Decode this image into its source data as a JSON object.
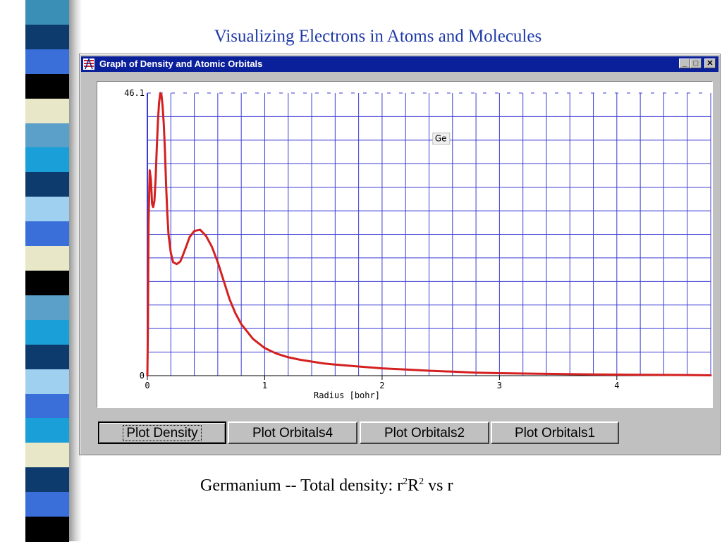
{
  "slide": {
    "title": "Visualizing Electrons in Atoms and Molecules",
    "caption_prefix": "Germanium -- Total density:  r",
    "caption_exp1": "2",
    "caption_mid": "R",
    "caption_exp2": "2",
    "caption_suffix": "  vs  r"
  },
  "window": {
    "title": "Graph of Density and Atomic Orbitals",
    "min_glyph": "_",
    "max_glyph": "□",
    "close_glyph": "✕"
  },
  "buttons": {
    "plot_density": "Plot Density",
    "plot_orbitals4": "Plot Orbitals4",
    "plot_orbitals2": "Plot Orbitals2",
    "plot_orbitals1": "Plot Orbitals1"
  },
  "colors": {
    "title_blue": "#1f3aa8",
    "titlebar": "#0a1f9a",
    "grid": "#3b3bd6",
    "curve": "#d42020",
    "strip": [
      "#3a8fb6",
      "#0d3b6e",
      "#3a6fd9",
      "#000000",
      "#e8e8c8",
      "#5aa0c8",
      "#1a9fd9",
      "#0d3b6e",
      "#9fd0f0",
      "#3a6fd9",
      "#e8e8c8",
      "#000000",
      "#5aa0c8",
      "#1a9fd9",
      "#0d3b6e",
      "#9fd0f0",
      "#3a6fd9",
      "#1a9fd9",
      "#e8e8c8",
      "#0d3b6e",
      "#3a6fd9",
      "#000000"
    ]
  },
  "icons": {
    "app": "app-icon"
  },
  "chart_data": {
    "type": "line",
    "xlabel": "Radius [bohr]",
    "ylabel": "",
    "ylim": [
      0,
      46.1
    ],
    "xlim": [
      0,
      4.8
    ],
    "x_ticks": [
      "0",
      "1",
      "2",
      "3",
      "4"
    ],
    "y_ticks": [
      "0",
      "46.1"
    ],
    "grid": true,
    "annotations": [
      "Ge"
    ],
    "series": [
      {
        "name": "",
        "x": [
          0.0,
          0.005,
          0.01,
          0.02,
          0.03,
          0.04,
          0.05,
          0.06,
          0.07,
          0.08,
          0.09,
          0.1,
          0.11,
          0.12,
          0.13,
          0.14,
          0.15,
          0.16,
          0.17,
          0.18,
          0.2,
          0.22,
          0.25,
          0.28,
          0.3,
          0.33,
          0.36,
          0.4,
          0.45,
          0.5,
          0.55,
          0.6,
          0.65,
          0.7,
          0.75,
          0.8,
          0.9,
          1.0,
          1.1,
          1.2,
          1.3,
          1.4,
          1.5,
          1.6,
          1.8,
          2.0,
          2.2,
          2.4,
          2.6,
          2.8,
          3.0,
          3.4,
          3.8,
          4.2,
          4.6,
          4.8
        ],
        "values": [
          0.0,
          8.0,
          25.0,
          33.5,
          32.0,
          28.0,
          27.5,
          28.5,
          32.0,
          37.0,
          41.5,
          44.5,
          46.1,
          45.8,
          44.0,
          41.0,
          36.5,
          31.0,
          26.5,
          23.0,
          20.0,
          18.5,
          18.2,
          18.6,
          19.5,
          21.0,
          22.6,
          23.6,
          23.8,
          22.8,
          21.0,
          18.5,
          15.5,
          12.5,
          10.2,
          8.4,
          6.0,
          4.5,
          3.6,
          3.0,
          2.6,
          2.3,
          2.0,
          1.8,
          1.5,
          1.2,
          1.0,
          0.8,
          0.65,
          0.5,
          0.4,
          0.3,
          0.2,
          0.15,
          0.1,
          0.06
        ]
      }
    ]
  }
}
